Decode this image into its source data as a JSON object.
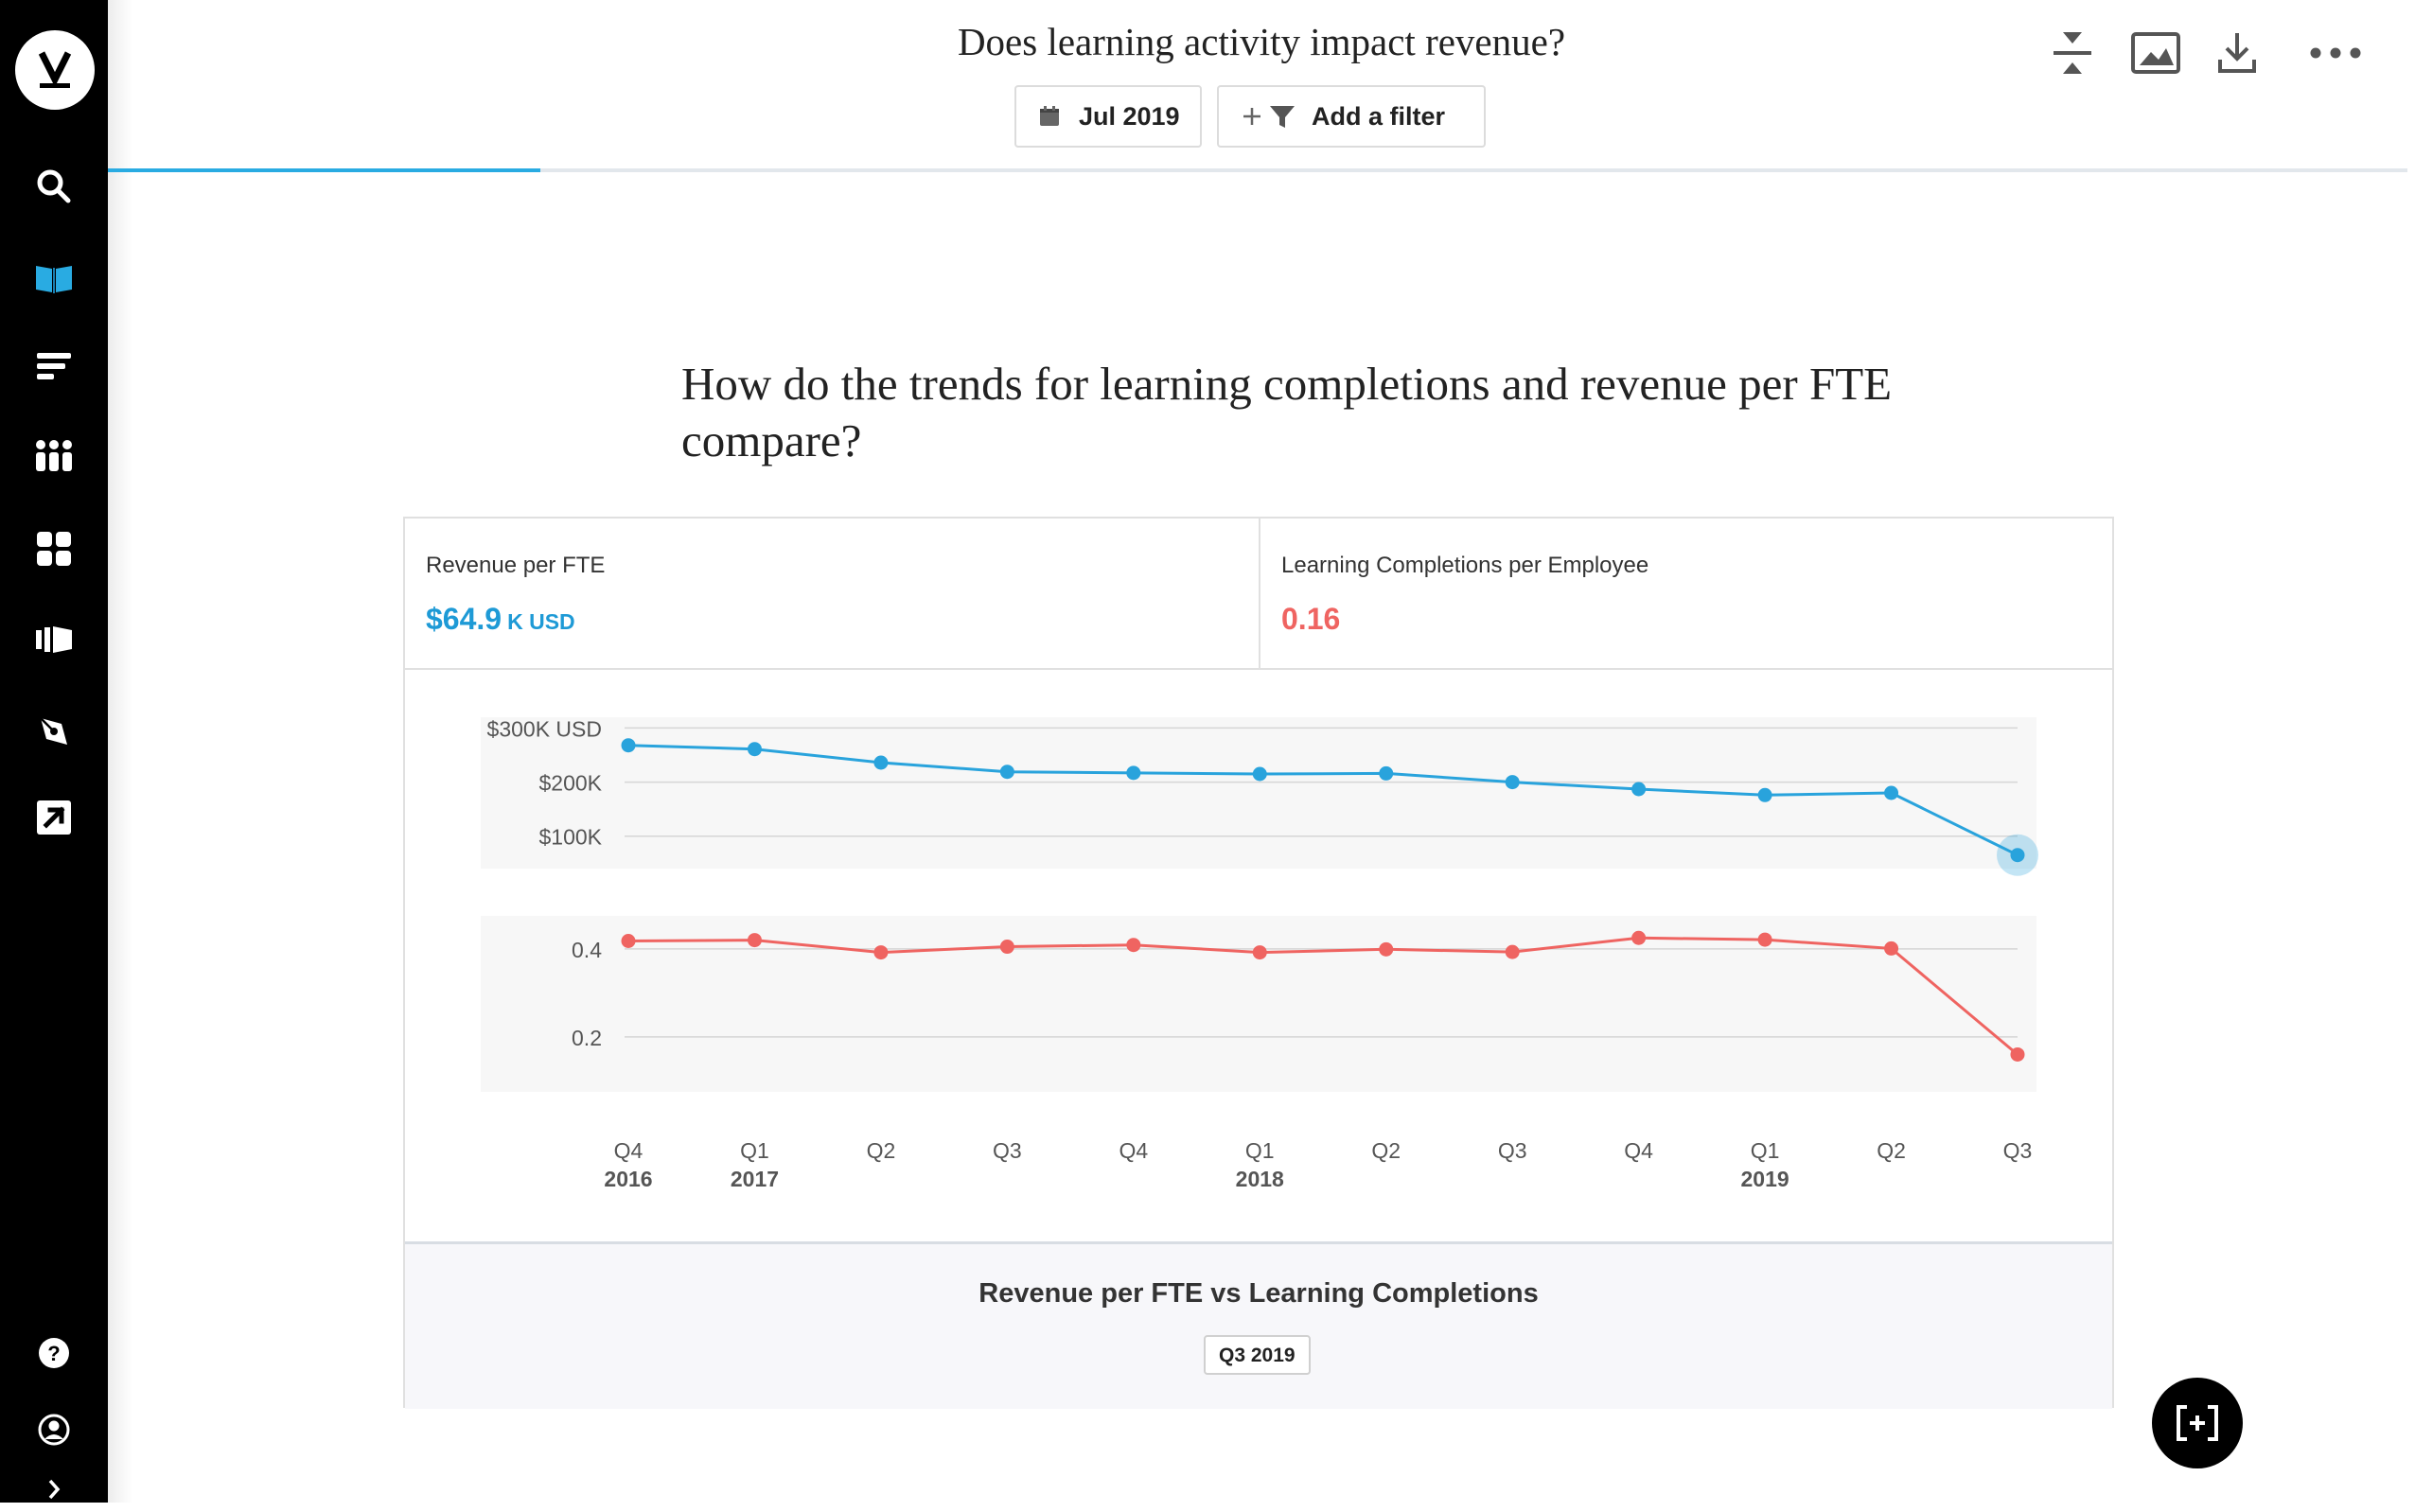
{
  "header": {
    "title": "Does learning activity impact revenue?",
    "date_label": "Jul 2019",
    "filter_label": "Add a filter",
    "progress": 0.188
  },
  "sidebar": {
    "items": [
      {
        "icon": "search-icon"
      },
      {
        "icon": "book-icon"
      },
      {
        "icon": "list-icon"
      },
      {
        "icon": "people-icon"
      },
      {
        "icon": "grid-icon"
      },
      {
        "icon": "stories-icon"
      },
      {
        "icon": "pen-icon"
      },
      {
        "icon": "external-link-icon"
      }
    ],
    "bottom": [
      {
        "icon": "help-icon"
      },
      {
        "icon": "user-icon"
      },
      {
        "icon": "chevron-right-icon"
      }
    ]
  },
  "story": {
    "heading": "How do the trends for learning completions and revenue per FTE compare?"
  },
  "metrics": {
    "revenue_label": "Revenue per FTE",
    "revenue_value": "$64.9",
    "revenue_unit": "K USD",
    "learning_label": "Learning Completions per Employee",
    "learning_value": "0.16"
  },
  "chart_data": {
    "type": "line",
    "categories": [
      "Q4 2016",
      "Q1 2017",
      "Q2",
      "Q3",
      "Q4",
      "Q1 2018",
      "Q2",
      "Q3",
      "Q4",
      "Q1 2019",
      "Q2",
      "Q3"
    ],
    "x_tick_quarters": [
      "Q4",
      "Q1",
      "Q2",
      "Q3",
      "Q4",
      "Q1",
      "Q2",
      "Q3",
      "Q4",
      "Q1",
      "Q2",
      "Q3"
    ],
    "x_tick_years": [
      "2016",
      "2017",
      "",
      "",
      "",
      "2018",
      "",
      "",
      "",
      "2019",
      "",
      ""
    ],
    "panels": [
      {
        "series_name": "Revenue per FTE",
        "color": "#29a3dc",
        "y_ticks": [
          {
            "value": 300000,
            "label": "$300K USD"
          },
          {
            "value": 200000,
            "label": "$200K"
          },
          {
            "value": 100000,
            "label": "$100K"
          }
        ],
        "ylim": [
          40000,
          320000
        ],
        "values": [
          268000,
          261000,
          236000,
          219000,
          217000,
          215000,
          216000,
          200000,
          187000,
          176000,
          180000,
          65000
        ],
        "highlight_index": 11
      },
      {
        "series_name": "Learning Completions per Employee",
        "color": "#ef6461",
        "y_ticks": [
          {
            "value": 0.4,
            "label": "0.4"
          },
          {
            "value": 0.2,
            "label": "0.2"
          }
        ],
        "ylim": [
          0.075,
          0.475
        ],
        "values": [
          0.418,
          0.42,
          0.392,
          0.405,
          0.409,
          0.392,
          0.399,
          0.393,
          0.425,
          0.421,
          0.401,
          0.16
        ]
      }
    ]
  },
  "footer": {
    "title": "Revenue per FTE vs Learning Completions",
    "chip_label": "Q3 2019"
  }
}
